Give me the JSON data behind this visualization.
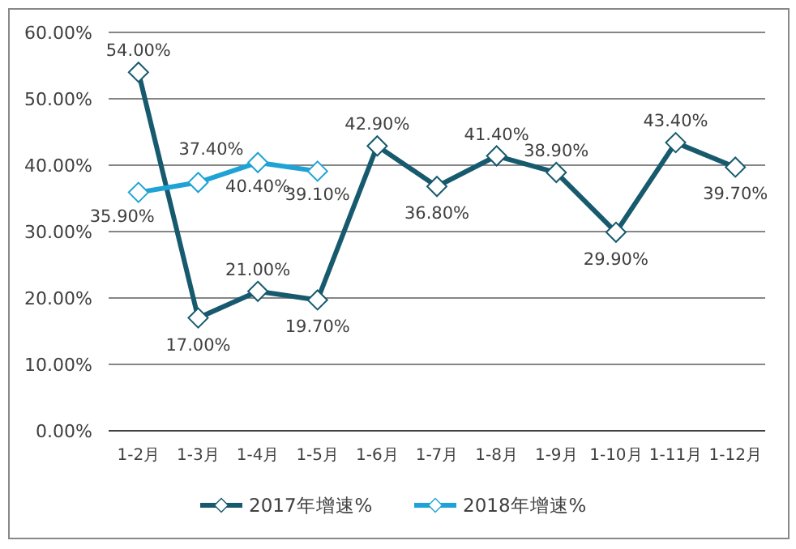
{
  "chart_data": {
    "type": "line",
    "categories": [
      "1-2月",
      "1-3月",
      "1-4月",
      "1-5月",
      "1-6月",
      "1-7月",
      "1-8月",
      "1-9月",
      "1-10月",
      "1-11月",
      "1-12月"
    ],
    "series": [
      {
        "name": "2017年增速%",
        "color": "#175a6e",
        "values": [
          54.0,
          17.0,
          21.0,
          19.7,
          42.9,
          36.8,
          41.4,
          38.9,
          29.9,
          43.4,
          39.7
        ],
        "value_labels": [
          "54.00%",
          "17.00%",
          "21.00%",
          "19.70%",
          "42.90%",
          "36.80%",
          "41.40%",
          "38.90%",
          "29.90%",
          "43.40%",
          "39.70%"
        ]
      },
      {
        "name": "2018年增速%",
        "color": "#1fa3d6",
        "values": [
          35.9,
          37.4,
          40.4,
          39.1,
          null,
          null,
          null,
          null,
          null,
          null,
          null
        ],
        "value_labels": [
          "35.90%",
          "37.40%",
          "40.40%",
          "39.10%",
          null,
          null,
          null,
          null,
          null,
          null,
          null
        ]
      }
    ],
    "ylim": [
      0,
      60
    ],
    "yticks": [
      {
        "value": 0,
        "label": "0.00%"
      },
      {
        "value": 10,
        "label": "10.00%"
      },
      {
        "value": 20,
        "label": "20.00%"
      },
      {
        "value": 30,
        "label": "30.00%"
      },
      {
        "value": 40,
        "label": "40.00%"
      },
      {
        "value": 50,
        "label": "50.00%"
      },
      {
        "value": 60,
        "label": "60.00%"
      }
    ],
    "grid": "y",
    "legend": "bottom",
    "marker": "diamond",
    "line_style": "solid"
  }
}
